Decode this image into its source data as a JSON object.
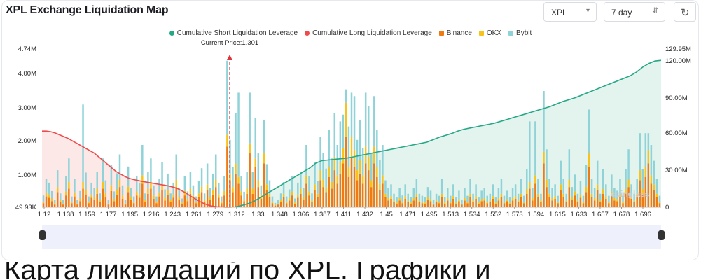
{
  "title": "XPL Exchange Liquidation Map",
  "controls": {
    "symbol": "XPL",
    "range": "7 day",
    "refresh_icon": "refresh-icon"
  },
  "colors": {
    "short": "#26a887",
    "long": "#ef4b4b",
    "binance": "#f07a12",
    "okx": "#f7c31b",
    "bybit": "#8fd3d8"
  },
  "bottom_caption": "Карта ликвидаций по XPL. Графики и",
  "chart_data": {
    "type": "bar",
    "legend": [
      "Cumulative Short Liquidation Leverage",
      "Cumulative Long Liquidation Leverage",
      "Binance",
      "OKX",
      "Bybit"
    ],
    "legend_position": "top",
    "current_price_label": "Current Price:1.301",
    "current_price": 1.301,
    "x_tick_labels": [
      "1.12",
      "1.138",
      "1.159",
      "1.177",
      "1.195",
      "1.216",
      "1.243",
      "1.261",
      "1.279",
      "1.312",
      "1.33",
      "1.348",
      "1.366",
      "1.387",
      "1.411",
      "1.432",
      "1.45",
      "1.471",
      "1.495",
      "1.513",
      "1.534",
      "1.552",
      "1.573",
      "1.594",
      "1.615",
      "1.633",
      "1.657",
      "1.678",
      "1.696"
    ],
    "y_left_ticks": [
      "49.93K",
      "1.00M",
      "2.00M",
      "3.00M",
      "4.00M",
      "4.74M"
    ],
    "y_left_range": [
      0,
      4740000
    ],
    "y_right_ticks": [
      "0",
      "30.00M",
      "60.00M",
      "90.00M",
      "120.00M",
      "129.95M"
    ],
    "y_right_range": [
      0,
      129950000
    ],
    "watermark": "coinglass",
    "bars_binance": [
      0.12,
      0.32,
      0.28,
      0.18,
      0.08,
      0.45,
      0.15,
      0.08,
      0.35,
      0.55,
      0.12,
      0.32,
      0.08,
      0.18,
      0.55,
      0.38,
      0.12,
      0.28,
      0.22,
      0.4,
      0.15,
      0.55,
      0.3,
      0.08,
      0.48,
      0.18,
      0.38,
      0.6,
      0.25,
      0.08,
      0.45,
      0.22,
      0.12,
      0.35,
      0.28,
      0.7,
      0.15,
      0.4,
      0.55,
      0.25,
      0.12,
      0.32,
      0.5,
      0.2,
      0.38,
      0.15,
      0.28,
      0.6,
      0.22,
      0.1,
      0.35,
      0.18,
      0.4,
      0.25,
      0.12,
      0.3,
      0.45,
      0.15,
      0.5,
      0.22,
      0.38,
      0.6,
      0.28,
      0.12,
      0.35,
      1.8,
      0.8,
      0.45,
      1.0,
      0.7,
      0.35,
      0.18,
      0.4,
      1.6,
      0.4,
      1.2,
      0.6,
      0.25,
      1.3,
      0.5,
      0.3,
      0.12,
      0.05,
      0.08,
      0.15,
      0.3,
      0.12,
      0.2,
      0.35,
      0.1,
      0.28,
      0.4,
      0.22,
      0.7,
      0.35,
      0.15,
      0.5,
      0.3,
      0.8,
      0.6,
      0.45,
      0.9,
      0.55,
      1.1,
      0.7,
      1.0,
      1.3,
      2.1,
      0.9,
      1.5,
      1.2,
      0.8,
      1.0,
      0.7,
      1.3,
      1.1,
      0.6,
      1.3,
      0.9,
      0.5,
      0.7,
      0.3,
      0.2,
      0.25,
      0.15,
      0.1,
      0.2,
      0.12,
      0.25,
      0.15,
      0.1,
      0.2,
      0.3,
      0.15,
      0.12,
      0.1,
      0.22,
      0.18,
      0.08,
      0.15,
      0.12,
      0.3,
      0.1,
      0.2,
      0.12,
      0.25,
      0.1,
      0.18,
      0.08,
      0.2,
      0.12,
      0.3,
      0.15,
      0.25,
      0.1,
      0.18,
      0.2,
      0.12,
      0.15,
      0.25,
      0.1,
      0.2,
      0.3,
      0.12,
      0.18,
      0.1,
      0.2,
      0.25,
      0.15,
      0.3,
      0.12,
      0.4,
      0.55,
      0.2,
      0.7,
      0.3,
      0.15,
      1.3,
      0.6,
      0.3,
      0.2,
      0.25,
      0.12,
      0.5,
      0.3,
      0.15,
      0.6,
      0.22,
      0.35,
      0.15,
      0.28,
      0.12,
      0.45,
      1.2,
      0.3,
      0.2,
      0.5,
      0.15,
      0.4,
      0.25,
      0.12,
      0.35,
      0.2,
      0.18,
      0.3,
      0.12,
      0.4,
      0.6,
      0.25,
      0.15,
      0.3,
      0.8,
      0.4,
      0.9,
      1.3,
      0.7,
      0.5,
      0.3,
      0.12
    ],
    "bars_okx": [
      0.05,
      0.12,
      0.1,
      0.08,
      0.04,
      0.15,
      0.06,
      0.03,
      0.12,
      0.2,
      0.05,
      0.12,
      0.03,
      0.08,
      0.2,
      0.15,
      0.05,
      0.1,
      0.08,
      0.15,
      0.06,
      0.2,
      0.12,
      0.03,
      0.18,
      0.07,
      0.15,
      0.22,
      0.1,
      0.03,
      0.16,
      0.08,
      0.05,
      0.12,
      0.1,
      0.25,
      0.06,
      0.15,
      0.2,
      0.1,
      0.05,
      0.12,
      0.18,
      0.08,
      0.14,
      0.06,
      0.1,
      0.22,
      0.08,
      0.04,
      0.13,
      0.07,
      0.15,
      0.1,
      0.05,
      0.11,
      0.16,
      0.06,
      0.18,
      0.08,
      0.14,
      0.22,
      0.1,
      0.05,
      0.13,
      0.35,
      0.2,
      0.15,
      0.3,
      0.2,
      0.12,
      0.06,
      0.15,
      0.3,
      0.15,
      0.25,
      0.2,
      0.1,
      0.3,
      0.18,
      0.1,
      0.05,
      0.02,
      0.03,
      0.06,
      0.1,
      0.05,
      0.08,
      0.12,
      0.04,
      0.1,
      0.15,
      0.08,
      0.25,
      0.12,
      0.06,
      0.18,
      0.1,
      0.3,
      0.22,
      0.15,
      0.3,
      0.2,
      0.4,
      0.25,
      0.35,
      0.45,
      1.0,
      0.3,
      0.6,
      0.5,
      0.3,
      0.4,
      0.25,
      0.5,
      0.4,
      0.2,
      0.5,
      0.3,
      0.2,
      0.25,
      0.1,
      0.07,
      0.08,
      0.05,
      0.04,
      0.07,
      0.05,
      0.08,
      0.05,
      0.04,
      0.07,
      0.1,
      0.05,
      0.04,
      0.04,
      0.08,
      0.06,
      0.03,
      0.05,
      0.04,
      0.1,
      0.04,
      0.07,
      0.04,
      0.08,
      0.04,
      0.06,
      0.03,
      0.07,
      0.04,
      0.1,
      0.05,
      0.08,
      0.04,
      0.06,
      0.07,
      0.04,
      0.05,
      0.08,
      0.04,
      0.07,
      0.1,
      0.04,
      0.06,
      0.04,
      0.07,
      0.08,
      0.05,
      0.1,
      0.04,
      0.14,
      0.2,
      0.07,
      0.25,
      0.1,
      0.05,
      0.35,
      0.22,
      0.1,
      0.07,
      0.08,
      0.04,
      0.18,
      0.1,
      0.05,
      0.22,
      0.08,
      0.12,
      0.05,
      0.1,
      0.04,
      0.16,
      0.4,
      0.1,
      0.07,
      0.18,
      0.05,
      0.14,
      0.08,
      0.04,
      0.12,
      0.07,
      0.06,
      0.1,
      0.04,
      0.14,
      0.22,
      0.08,
      0.05,
      0.1,
      0.3,
      0.14,
      0.3,
      0.4,
      0.25,
      0.18,
      0.1,
      0.04
    ],
    "bars_bybit": [
      0.18,
      0.4,
      0.35,
      0.22,
      0.1,
      0.5,
      0.2,
      0.1,
      0.45,
      0.7,
      0.15,
      0.4,
      0.1,
      0.22,
      2.3,
      0.5,
      0.15,
      0.35,
      0.28,
      0.5,
      0.2,
      0.7,
      0.38,
      0.1,
      0.6,
      0.22,
      0.48,
      0.75,
      0.3,
      0.1,
      0.6,
      0.28,
      0.15,
      0.45,
      0.35,
      0.9,
      0.2,
      0.5,
      0.7,
      0.3,
      0.15,
      0.4,
      0.65,
      0.25,
      0.48,
      0.2,
      0.35,
      0.75,
      0.28,
      0.12,
      0.45,
      0.22,
      0.5,
      0.3,
      0.15,
      0.38,
      0.55,
      0.2,
      0.62,
      0.28,
      0.48,
      0.75,
      0.35,
      0.15,
      0.45,
      2.2,
      1.0,
      0.6,
      1.5,
      2.5,
      0.45,
      0.22,
      0.5,
      1.5,
      0.5,
      1.2,
      0.8,
      0.3,
      1.0,
      0.6,
      0.4,
      0.15,
      0.06,
      0.1,
      0.2,
      0.35,
      0.15,
      0.25,
      0.45,
      0.12,
      0.35,
      0.5,
      0.28,
      0.9,
      0.45,
      0.2,
      0.65,
      0.38,
      1.0,
      0.8,
      0.55,
      1.1,
      0.7,
      1.3,
      0.9,
      1.2,
      1.0,
      0.4,
      1.2,
      1.3,
      1.6,
      0.9,
      1.2,
      0.8,
      1.6,
      1.5,
      0.8,
      1.5,
      1.1,
      0.7,
      0.9,
      0.4,
      0.3,
      0.35,
      0.2,
      0.15,
      0.3,
      0.18,
      0.35,
      0.2,
      0.15,
      0.3,
      0.45,
      0.2,
      0.18,
      0.15,
      0.3,
      0.25,
      0.12,
      0.2,
      0.18,
      0.45,
      0.15,
      0.3,
      0.18,
      0.35,
      0.15,
      0.25,
      0.12,
      0.3,
      0.18,
      0.45,
      0.2,
      0.35,
      0.15,
      0.25,
      0.3,
      0.18,
      0.2,
      0.35,
      0.15,
      0.3,
      0.45,
      0.18,
      0.25,
      0.15,
      0.3,
      0.35,
      0.2,
      0.45,
      0.18,
      0.6,
      1.8,
      0.3,
      1.6,
      0.45,
      0.2,
      1.8,
      0.9,
      0.45,
      0.3,
      0.35,
      0.18,
      0.7,
      0.45,
      0.2,
      0.9,
      0.3,
      0.5,
      0.2,
      0.4,
      0.18,
      0.65,
      1.3,
      0.45,
      0.3,
      0.7,
      0.2,
      0.6,
      0.35,
      0.18,
      0.5,
      0.3,
      0.25,
      0.45,
      0.18,
      0.6,
      0.9,
      0.35,
      0.2,
      0.45,
      1.1,
      0.6,
      1.0,
      0.5,
      0.9,
      0.7,
      0.45,
      0.18
    ],
    "cumulative_long": [
      62,
      62,
      61.5,
      60.5,
      59,
      57.5,
      56,
      54,
      52,
      50,
      48,
      46,
      44,
      41,
      38,
      35,
      32,
      29,
      27,
      25,
      23.5,
      22.5,
      21.8,
      21,
      20.4,
      19.8,
      19.2,
      18.6,
      18,
      17.3,
      16.4,
      15.2,
      13.5,
      11.5,
      9.2,
      7.0,
      5.0,
      3.2,
      1.8,
      0.9,
      0.4,
      0.2,
      0.05,
      0
    ],
    "cumulative_short": [
      0,
      0.3,
      1.5,
      3,
      5,
      8,
      11,
      14,
      17,
      20,
      23,
      26,
      29,
      32,
      36,
      38,
      38.5,
      39,
      39.5,
      40,
      41,
      42,
      43,
      44,
      45,
      46,
      47,
      48,
      49,
      50,
      51,
      52,
      53,
      55,
      57,
      58.5,
      60,
      62,
      63.5,
      64.5,
      65.5,
      66.5,
      67.5,
      68.5,
      70,
      71.5,
      73,
      74.5,
      76,
      77.5,
      79,
      80.5,
      82,
      84,
      86,
      87.5,
      89,
      91,
      93,
      95,
      97,
      99,
      101,
      103,
      105,
      107,
      110,
      114,
      117,
      119,
      119.6
    ]
  }
}
